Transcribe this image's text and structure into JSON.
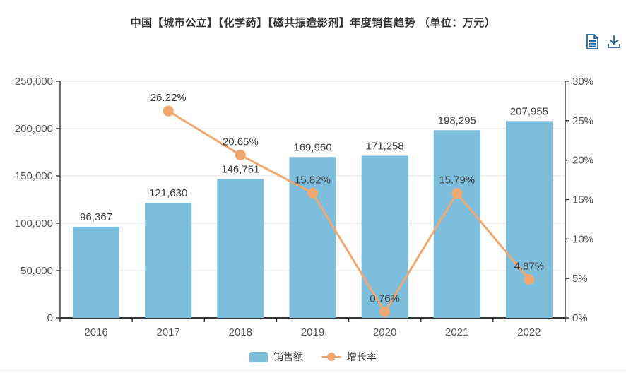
{
  "header": {
    "tools": [
      {
        "name": "data-view",
        "label": "数据视图"
      },
      {
        "name": "download",
        "label": "下载"
      }
    ],
    "tool_icon_color": "#1f5c99"
  },
  "chart_data": {
    "type": "bar+line",
    "title": "中国【城市公立】【化学药】【磁共振造影剂】年度销售趋势 （单位：万元）",
    "categories": [
      "2016",
      "2017",
      "2018",
      "2019",
      "2020",
      "2021",
      "2022"
    ],
    "series": [
      {
        "name": "销售额",
        "type": "bar",
        "axis": "left",
        "color": "#7cbedc",
        "values": [
          96367,
          121630,
          146751,
          169960,
          171258,
          198295,
          207955
        ],
        "labels": [
          "96,367",
          "121,630",
          "146,751",
          "169,960",
          "171,258",
          "198,295",
          "207,955"
        ]
      },
      {
        "name": "增长率",
        "type": "line",
        "axis": "right",
        "color": "#f1a870",
        "values": [
          null,
          26.22,
          20.65,
          15.82,
          0.76,
          15.79,
          4.87
        ],
        "labels": [
          "",
          "26.22%",
          "20.65%",
          "15.82%",
          "0.76%",
          "15.79%",
          "4.87%"
        ]
      }
    ],
    "left_axis": {
      "min": 0,
      "max": 250000,
      "ticks": [
        "0",
        "50,000",
        "100,000",
        "150,000",
        "200,000",
        "250,000"
      ]
    },
    "right_axis": {
      "min": 0,
      "max": 30,
      "ticks": [
        "0%",
        "5%",
        "10%",
        "15%",
        "20%",
        "25%",
        "30%"
      ]
    },
    "grid": {
      "on": true,
      "color": "#e0e0e0",
      "axis_color": "#333333"
    },
    "legend_position": "bottom"
  }
}
